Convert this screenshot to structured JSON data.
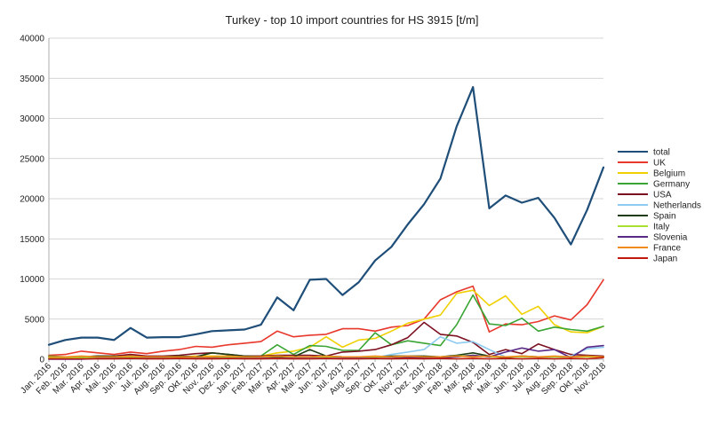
{
  "chart_data": {
    "type": "line",
    "title": "Turkey - top 10 import countries for HS 3915 [t/m]",
    "xlabel": "",
    "ylabel": "",
    "ylim": [
      0,
      40000
    ],
    "yticks": [
      0,
      5000,
      10000,
      15000,
      20000,
      25000,
      30000,
      35000,
      40000
    ],
    "grid": "horizontal",
    "legend_position": "right",
    "categories": [
      "Jan. 2016",
      "Feb. 2016",
      "Mar. 2016",
      "Apr. 2016",
      "Mai. 2016",
      "Jun. 2016",
      "Jul. 2016",
      "Aug. 2016",
      "Sep. 2016",
      "Okt. 2016",
      "Nov. 2016",
      "Dez. 2016",
      "Jan. 2017",
      "Feb. 2017",
      "Mar. 2017",
      "Apr. 2017",
      "Mai. 2017",
      "Jun. 2017",
      "Jul. 2017",
      "Aug. 2017",
      "Sep. 2017",
      "Okt. 2017",
      "Nov. 2017",
      "Dez. 2017",
      "Jan. 2018",
      "Feb. 2018",
      "Mar. 2018",
      "Apr. 2018",
      "Mai. 2018",
      "Jun. 2018",
      "Jul. 2018",
      "Aug. 2018",
      "Sep. 2018",
      "Okt. 2018",
      "Nov. 2018"
    ],
    "series": [
      {
        "name": "total",
        "color": "#1f4e79",
        "width": 2.2,
        "values": [
          1800,
          2400,
          2700,
          2700,
          2400,
          3900,
          2700,
          2750,
          2750,
          3100,
          3500,
          3600,
          3700,
          4300,
          7700,
          6100,
          9900,
          10000,
          8000,
          9600,
          12300,
          14000,
          16800,
          19300,
          22500,
          29000,
          33900,
          18800,
          20400,
          19500,
          20100,
          17600,
          14300,
          18600,
          23900
        ]
      },
      {
        "name": "UK",
        "color": "#e8372b",
        "width": 1.6,
        "values": [
          500,
          600,
          1000,
          800,
          600,
          900,
          700,
          1000,
          1200,
          1600,
          1500,
          1800,
          2000,
          2200,
          3500,
          2800,
          3000,
          3100,
          3800,
          3800,
          3500,
          4000,
          4200,
          5000,
          7400,
          8400,
          9100,
          3400,
          4400,
          4300,
          4700,
          5400,
          4900,
          6800,
          9900
        ]
      },
      {
        "name": "Belgium",
        "color": "#f0d000",
        "width": 1.6,
        "values": [
          100,
          100,
          200,
          200,
          300,
          200,
          200,
          300,
          300,
          400,
          400,
          400,
          400,
          400,
          800,
          1000,
          1500,
          2800,
          1500,
          2400,
          2600,
          3500,
          4500,
          5000,
          5500,
          8200,
          8600,
          6700,
          7900,
          5600,
          6600,
          4300,
          3400,
          3300,
          4100
        ]
      },
      {
        "name": "Germany",
        "color": "#3aa535",
        "width": 1.6,
        "values": [
          400,
          300,
          300,
          200,
          300,
          400,
          300,
          300,
          300,
          300,
          300,
          400,
          400,
          400,
          1800,
          600,
          1700,
          1600,
          1100,
          1100,
          3300,
          1800,
          2300,
          2000,
          1700,
          4300,
          8000,
          4400,
          4200,
          5100,
          3500,
          4000,
          3700,
          3500,
          4100
        ]
      },
      {
        "name": "USA",
        "color": "#7b1020",
        "width": 1.6,
        "values": [
          200,
          200,
          300,
          400,
          400,
          600,
          400,
          400,
          500,
          700,
          800,
          600,
          400,
          400,
          500,
          500,
          500,
          400,
          900,
          1000,
          1200,
          1800,
          2700,
          4600,
          3100,
          2900,
          2100,
          600,
          1200,
          700,
          1900,
          1200,
          600,
          500,
          400
        ]
      },
      {
        "name": "Netherlands",
        "color": "#8ecbf0",
        "width": 1.6,
        "values": [
          100,
          100,
          100,
          100,
          100,
          100,
          100,
          100,
          100,
          200,
          200,
          200,
          200,
          200,
          300,
          200,
          300,
          200,
          200,
          200,
          200,
          600,
          900,
          1200,
          2800,
          2000,
          2200,
          1200,
          300,
          300,
          300,
          300,
          400,
          1300,
          1500
        ]
      },
      {
        "name": "Spain",
        "color": "#1e3d14",
        "width": 1.6,
        "values": [
          300,
          300,
          300,
          400,
          400,
          300,
          300,
          300,
          400,
          300,
          800,
          600,
          400,
          300,
          300,
          300,
          1200,
          400,
          300,
          300,
          300,
          400,
          400,
          400,
          300,
          500,
          800,
          400,
          200,
          400,
          300,
          300,
          300,
          400,
          300
        ]
      },
      {
        "name": "Italy",
        "color": "#a8e030",
        "width": 1.6,
        "values": [
          200,
          200,
          200,
          200,
          200,
          300,
          200,
          200,
          200,
          200,
          200,
          200,
          200,
          300,
          400,
          300,
          300,
          300,
          300,
          300,
          300,
          300,
          300,
          300,
          300,
          400,
          500,
          300,
          300,
          300,
          300,
          300,
          300,
          300,
          300
        ]
      },
      {
        "name": "Slovenia",
        "color": "#5a2a87",
        "width": 1.6,
        "values": [
          0,
          0,
          0,
          100,
          100,
          100,
          100,
          100,
          100,
          100,
          100,
          100,
          100,
          100,
          100,
          100,
          100,
          100,
          100,
          100,
          100,
          100,
          200,
          200,
          200,
          300,
          500,
          300,
          900,
          1400,
          1000,
          1200,
          200,
          1500,
          1700
        ]
      },
      {
        "name": "France",
        "color": "#f08a1c",
        "width": 1.6,
        "values": [
          300,
          300,
          400,
          300,
          300,
          400,
          300,
          300,
          300,
          300,
          300,
          400,
          300,
          300,
          400,
          300,
          300,
          400,
          300,
          300,
          400,
          300,
          400,
          300,
          300,
          400,
          300,
          400,
          300,
          400,
          300,
          400,
          300,
          400,
          300
        ]
      },
      {
        "name": "Japan",
        "color": "#c0180c",
        "width": 1.6,
        "values": [
          50,
          50,
          50,
          50,
          50,
          100,
          50,
          50,
          100,
          50,
          50,
          100,
          50,
          50,
          100,
          50,
          50,
          100,
          50,
          50,
          100,
          50,
          100,
          50,
          100,
          50,
          100,
          50,
          100,
          50,
          100,
          50,
          100,
          50,
          200
        ]
      }
    ]
  }
}
